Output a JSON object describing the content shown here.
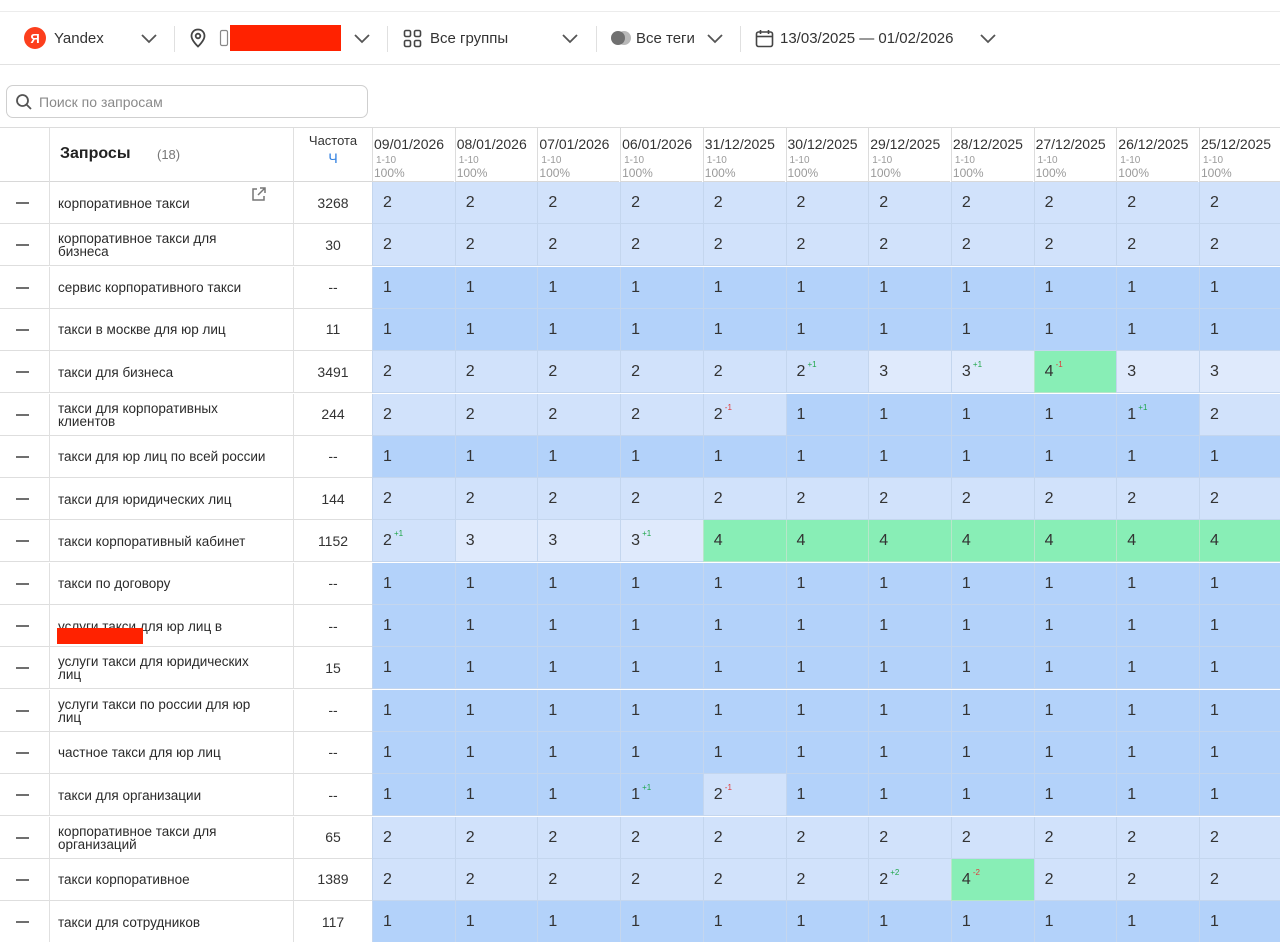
{
  "toolbar": {
    "engine": {
      "label": "Yandex",
      "logo_letter": "Я"
    },
    "region": {
      "icon": "map-pin-icon",
      "device_icon": "mobile-icon"
    },
    "groups": {
      "label": "Все группы",
      "icon": "grid-icon"
    },
    "tags": {
      "label": "Все теги",
      "icon": "tags-icon"
    },
    "dates": {
      "label": "13/03/2025 — 01/02/2026",
      "icon": "calendar-icon"
    }
  },
  "search": {
    "placeholder": "Поиск по запросам"
  },
  "table": {
    "title": "Запросы",
    "count": "(18)",
    "freq_label": "Частота",
    "freq_unit": "Ч",
    "columns": [
      {
        "date": "09/01/2026",
        "range": "1-10",
        "pct": "100%"
      },
      {
        "date": "08/01/2026",
        "range": "1-10",
        "pct": "100%"
      },
      {
        "date": "07/01/2026",
        "range": "1-10",
        "pct": "100%"
      },
      {
        "date": "06/01/2026",
        "range": "1-10",
        "pct": "100%"
      },
      {
        "date": "31/12/2025",
        "range": "1-10",
        "pct": "100%"
      },
      {
        "date": "30/12/2025",
        "range": "1-10",
        "pct": "100%"
      },
      {
        "date": "29/12/2025",
        "range": "1-10",
        "pct": "100%"
      },
      {
        "date": "28/12/2025",
        "range": "1-10",
        "pct": "100%"
      },
      {
        "date": "27/12/2025",
        "range": "1-10",
        "pct": "100%"
      },
      {
        "date": "26/12/2025",
        "range": "1-10",
        "pct": "100%"
      },
      {
        "date": "25/12/2025",
        "range": "1-10",
        "pct": "100%"
      }
    ],
    "rows": [
      {
        "query": "корпоративное такси",
        "freq": "3268",
        "link": true,
        "values": [
          "2",
          "2",
          "2",
          "2",
          "2",
          "2",
          "2",
          "2",
          "2",
          "2",
          "2"
        ]
      },
      {
        "query": "корпоративное такси для бизнеса",
        "freq": "30",
        "values": [
          "2",
          "2",
          "2",
          "2",
          "2",
          "2",
          "2",
          "2",
          "2",
          "2",
          "2"
        ]
      },
      {
        "query": "сервис корпоративного такси",
        "freq": "--",
        "values": [
          "1",
          "1",
          "1",
          "1",
          "1",
          "1",
          "1",
          "1",
          "1",
          "1",
          "1"
        ]
      },
      {
        "query": "такси в москве для юр лиц",
        "freq": "11",
        "values": [
          "1",
          "1",
          "1",
          "1",
          "1",
          "1",
          "1",
          "1",
          "1",
          "1",
          "1"
        ]
      },
      {
        "query": "такси для бизнеса",
        "freq": "3491",
        "values": [
          "2",
          "2",
          "2",
          "2",
          "2",
          "2",
          "3",
          "3",
          "4",
          "3",
          "3"
        ],
        "deltas": [
          null,
          null,
          null,
          null,
          null,
          {
            "text": "+1",
            "dir": "up"
          },
          null,
          {
            "text": "+1",
            "dir": "up"
          },
          {
            "text": "-1",
            "dir": "down"
          },
          null,
          null
        ]
      },
      {
        "query": "такси для корпоративных клиентов",
        "freq": "244",
        "values": [
          "2",
          "2",
          "2",
          "2",
          "2",
          "1",
          "1",
          "1",
          "1",
          "1",
          "2"
        ],
        "deltas": [
          null,
          null,
          null,
          null,
          {
            "text": "-1",
            "dir": "down"
          },
          null,
          null,
          null,
          null,
          {
            "text": "+1",
            "dir": "up"
          },
          null
        ]
      },
      {
        "query": "такси для юр лиц по всей россии",
        "freq": "--",
        "values": [
          "1",
          "1",
          "1",
          "1",
          "1",
          "1",
          "1",
          "1",
          "1",
          "1",
          "1"
        ]
      },
      {
        "query": "такси для юридических лиц",
        "freq": "144",
        "values": [
          "2",
          "2",
          "2",
          "2",
          "2",
          "2",
          "2",
          "2",
          "2",
          "2",
          "2"
        ]
      },
      {
        "query": "такси корпоративный кабинет",
        "freq": "1152",
        "values": [
          "2",
          "3",
          "3",
          "3",
          "4",
          "4",
          "4",
          "4",
          "4",
          "4",
          "4"
        ],
        "deltas": [
          {
            "text": "+1",
            "dir": "up"
          },
          null,
          null,
          {
            "text": "+1",
            "dir": "up"
          },
          null,
          null,
          null,
          null,
          null,
          null,
          null
        ]
      },
      {
        "query": "такси по договору",
        "freq": "--",
        "values": [
          "1",
          "1",
          "1",
          "1",
          "1",
          "1",
          "1",
          "1",
          "1",
          "1",
          "1"
        ]
      },
      {
        "query": "услуги такси для юр лиц в",
        "freq": "--",
        "redacted": true,
        "values": [
          "1",
          "1",
          "1",
          "1",
          "1",
          "1",
          "1",
          "1",
          "1",
          "1",
          "1"
        ]
      },
      {
        "query": "услуги такси для юридических лиц",
        "freq": "15",
        "values": [
          "1",
          "1",
          "1",
          "1",
          "1",
          "1",
          "1",
          "1",
          "1",
          "1",
          "1"
        ]
      },
      {
        "query": "услуги такси по россии для юр лиц",
        "freq": "--",
        "values": [
          "1",
          "1",
          "1",
          "1",
          "1",
          "1",
          "1",
          "1",
          "1",
          "1",
          "1"
        ]
      },
      {
        "query": "частное такси для юр лиц",
        "freq": "--",
        "values": [
          "1",
          "1",
          "1",
          "1",
          "1",
          "1",
          "1",
          "1",
          "1",
          "1",
          "1"
        ]
      },
      {
        "query": "такси для организации",
        "freq": "--",
        "values": [
          "1",
          "1",
          "1",
          "1",
          "2",
          "1",
          "1",
          "1",
          "1",
          "1",
          "1"
        ],
        "deltas": [
          null,
          null,
          null,
          {
            "text": "+1",
            "dir": "up"
          },
          {
            "text": "-1",
            "dir": "down"
          },
          null,
          null,
          null,
          null,
          null,
          null
        ]
      },
      {
        "query": "корпоративное такси для организаций",
        "freq": "65",
        "values": [
          "2",
          "2",
          "2",
          "2",
          "2",
          "2",
          "2",
          "2",
          "2",
          "2",
          "2"
        ]
      },
      {
        "query": "такси корпоративное",
        "freq": "1389",
        "values": [
          "2",
          "2",
          "2",
          "2",
          "2",
          "2",
          "2",
          "4",
          "2",
          "2",
          "2"
        ],
        "deltas": [
          null,
          null,
          null,
          null,
          null,
          null,
          {
            "text": "+2",
            "dir": "up"
          },
          {
            "text": "-2",
            "dir": "down"
          },
          null,
          null,
          null
        ]
      },
      {
        "query": "такси для сотрудников",
        "freq": "117",
        "values": [
          "1",
          "1",
          "1",
          "1",
          "1",
          "1",
          "1",
          "1",
          "1",
          "1",
          "1"
        ]
      }
    ]
  },
  "colors": {
    "pos1": "#b3d2fa",
    "pos2": "#d1e2fb",
    "pos3": "#dfeafc",
    "pos4": "#88eeb6",
    "up": "#1fa64a",
    "down": "#e03a3a",
    "redaction": "#ff2200"
  }
}
